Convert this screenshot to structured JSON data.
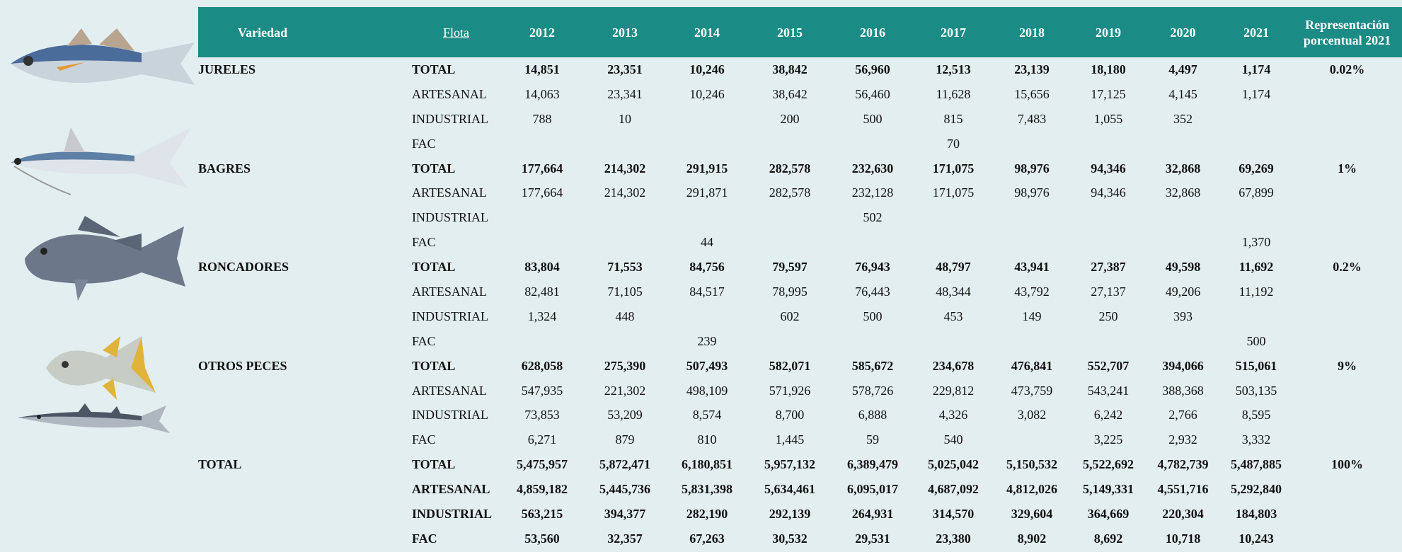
{
  "header": {
    "variedad": "Variedad",
    "flota": "Flota",
    "years": [
      "2012",
      "2013",
      "2014",
      "2015",
      "2016",
      "2017",
      "2018",
      "2019",
      "2020",
      "2021"
    ],
    "share": "Representación porcentual 2021"
  },
  "groups": [
    {
      "variedad": "JURELES",
      "share": "0.02%",
      "rows": [
        {
          "flota": "TOTAL",
          "values": [
            "14,851",
            "23,351",
            "10,246",
            "38,842",
            "56,960",
            "12,513",
            "23,139",
            "18,180",
            "4,497",
            "1,174"
          ]
        },
        {
          "flota": "ARTESANAL",
          "values": [
            "14,063",
            "23,341",
            "10,246",
            "38,642",
            "56,460",
            "11,628",
            "15,656",
            "17,125",
            "4,145",
            "1,174"
          ]
        },
        {
          "flota": "INDUSTRIAL",
          "values": [
            "788",
            "10",
            null,
            "200",
            "500",
            "815",
            "7,483",
            "1,055",
            "352",
            null
          ]
        },
        {
          "flota": "FAC",
          "values": [
            null,
            null,
            null,
            null,
            null,
            "70",
            null,
            null,
            null,
            null
          ]
        }
      ]
    },
    {
      "variedad": "BAGRES",
      "share": "1%",
      "rows": [
        {
          "flota": "TOTAL",
          "values": [
            "177,664",
            "214,302",
            "291,915",
            "282,578",
            "232,630",
            "171,075",
            "98,976",
            "94,346",
            "32,868",
            "69,269"
          ]
        },
        {
          "flota": "ARTESANAL",
          "values": [
            "177,664",
            "214,302",
            "291,871",
            "282,578",
            "232,128",
            "171,075",
            "98,976",
            "94,346",
            "32,868",
            "67,899"
          ]
        },
        {
          "flota": "INDUSTRIAL",
          "values": [
            null,
            null,
            null,
            null,
            "502",
            null,
            null,
            null,
            null,
            null
          ]
        },
        {
          "flota": "FAC",
          "values": [
            null,
            null,
            "44",
            null,
            null,
            null,
            null,
            null,
            null,
            "1,370"
          ]
        }
      ]
    },
    {
      "variedad": "RONCADORES",
      "share": "0.2%",
      "rows": [
        {
          "flota": "TOTAL",
          "values": [
            "83,804",
            "71,553",
            "84,756",
            "79,597",
            "76,943",
            "48,797",
            "43,941",
            "27,387",
            "49,598",
            "11,692"
          ]
        },
        {
          "flota": "ARTESANAL",
          "values": [
            "82,481",
            "71,105",
            "84,517",
            "78,995",
            "76,443",
            "48,344",
            "43,792",
            "27,137",
            "49,206",
            "11,192"
          ]
        },
        {
          "flota": "INDUSTRIAL",
          "values": [
            "1,324",
            "448",
            null,
            "602",
            "500",
            "453",
            "149",
            "250",
            "393",
            null
          ]
        },
        {
          "flota": "FAC",
          "values": [
            null,
            null,
            "239",
            null,
            null,
            null,
            null,
            null,
            null,
            "500"
          ]
        }
      ]
    },
    {
      "variedad": "OTROS PECES",
      "share": "9%",
      "rows": [
        {
          "flota": "TOTAL",
          "values": [
            "628,058",
            "275,390",
            "507,493",
            "582,071",
            "585,672",
            "234,678",
            "476,841",
            "552,707",
            "394,066",
            "515,061"
          ]
        },
        {
          "flota": "ARTESANAL",
          "values": [
            "547,935",
            "221,302",
            "498,109",
            "571,926",
            "578,726",
            "229,812",
            "473,759",
            "543,241",
            "388,368",
            "503,135"
          ]
        },
        {
          "flota": "INDUSTRIAL",
          "values": [
            "73,853",
            "53,209",
            "8,574",
            "8,700",
            "6,888",
            "4,326",
            "3,082",
            "6,242",
            "2,766",
            "8,595"
          ]
        },
        {
          "flota": "FAC",
          "values": [
            "6,271",
            "879",
            "810",
            "1,445",
            "59",
            "540",
            null,
            "3,225",
            "2,932",
            "3,332"
          ]
        }
      ]
    },
    {
      "variedad": "TOTAL",
      "share": "100%",
      "rows": [
        {
          "flota": "TOTAL",
          "values": [
            "5,475,957",
            "5,872,471",
            "6,180,851",
            "5,957,132",
            "6,389,479",
            "5,025,042",
            "5,150,532",
            "5,522,692",
            "4,782,739",
            "5,487,885"
          ]
        },
        {
          "flota": "ARTESANAL",
          "values": [
            "4,859,182",
            "5,445,736",
            "5,831,398",
            "5,634,461",
            "6,095,017",
            "4,687,092",
            "4,812,026",
            "5,149,331",
            "4,551,716",
            "5,292,840"
          ]
        },
        {
          "flota": "INDUSTRIAL",
          "values": [
            "563,215",
            "394,377",
            "282,190",
            "292,139",
            "264,931",
            "314,570",
            "329,604",
            "364,669",
            "220,304",
            "184,803"
          ]
        },
        {
          "flota": "FAC",
          "values": [
            "53,560",
            "32,357",
            "67,263",
            "30,532",
            "29,531",
            "23,380",
            "8,902",
            "8,692",
            "10,718",
            "10,243"
          ]
        }
      ]
    }
  ]
}
